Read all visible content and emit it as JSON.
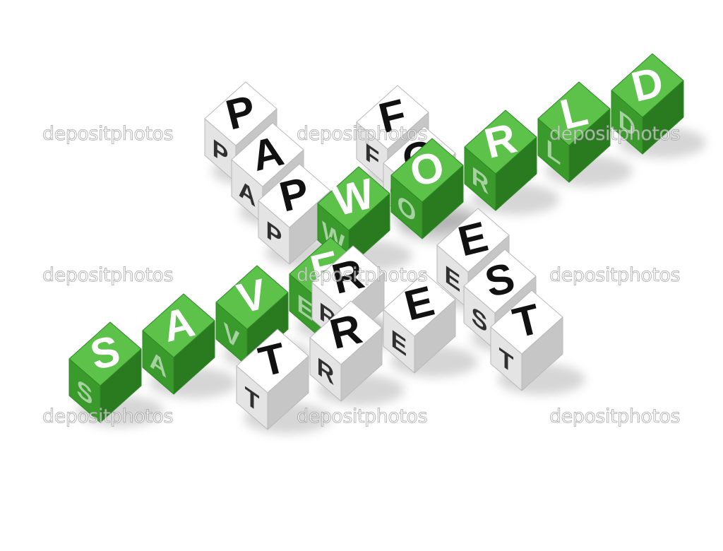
{
  "colors": {
    "background": "#ffffff",
    "green_top": "#5cc24a",
    "green_side_light": "#3a9a2c",
    "green_side_dark": "#2a7a20",
    "white_top": "#ffffff",
    "white_side_light": "#e4e4e4",
    "white_side_dark": "#c6c6c6",
    "letter_on_green": "#ffffff",
    "letter_on_white": "#111111"
  },
  "words": {
    "save": {
      "text": "SAVE",
      "color": "green"
    },
    "world": {
      "text": "WORLD",
      "color": "green"
    },
    "paper": {
      "text": "PAPER",
      "color": "white"
    },
    "forest": {
      "text": "FOREST",
      "color": "white"
    },
    "tree": {
      "text": "TREE",
      "color": "white"
    }
  },
  "watermark": {
    "text": "depositphotos"
  }
}
